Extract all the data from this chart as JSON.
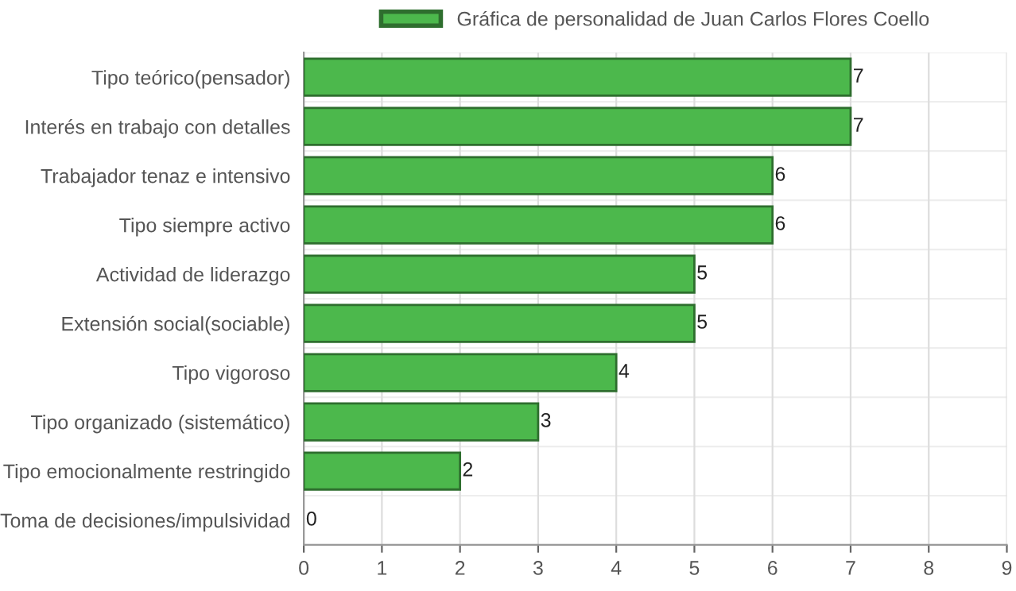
{
  "chart_data": {
    "type": "bar",
    "orientation": "horizontal",
    "categories": [
      "Tipo teórico(pensador)",
      "Interés en trabajo con detalles",
      "Trabajador tenaz e intensivo",
      "Tipo siempre activo",
      "Actividad de liderazgo",
      "Extensión social(sociable)",
      "Tipo vigoroso",
      "Tipo organizado (sistemático)",
      "Tipo emocionalmente restringido",
      "Toma de decisiones/impulsividad"
    ],
    "series": [
      {
        "name": "Gráfica de personalidad de Juan Carlos Flores Coello",
        "color": "#4cb84c",
        "values": [
          7,
          7,
          6,
          6,
          5,
          5,
          4,
          3,
          2,
          0
        ]
      }
    ],
    "xlim": [
      0,
      9
    ],
    "xticks": [
      0,
      1,
      2,
      3,
      4,
      5,
      6,
      7,
      8,
      9
    ],
    "grid": true,
    "legend": "top",
    "data_labels": true
  }
}
